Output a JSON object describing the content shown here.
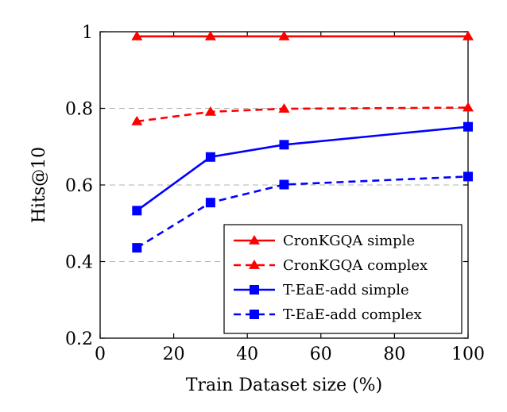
{
  "chart_data": {
    "type": "line",
    "xlabel": "Train Dataset size (%)",
    "ylabel": "Hits@10",
    "xlim": [
      0,
      100
    ],
    "ylim": [
      0.2,
      1.0
    ],
    "xticks": [
      "0",
      "20",
      "40",
      "60",
      "80",
      "100"
    ],
    "yticks": [
      "0.2",
      "0.4",
      "0.6",
      "0.8",
      "1"
    ],
    "grid": "horizontal dashed",
    "legend_position": "bottom-right",
    "x": [
      10,
      30,
      50,
      100
    ],
    "series": [
      {
        "name": "CronKGQA simple",
        "values": [
          0.988,
          0.988,
          0.988,
          0.988
        ],
        "color": "#ff0000",
        "dash": "solid",
        "marker": "triangle"
      },
      {
        "name": "CronKGQA complex",
        "values": [
          0.766,
          0.791,
          0.799,
          0.802
        ],
        "color": "#ff0000",
        "dash": "dashed",
        "marker": "triangle"
      },
      {
        "name": "T-EaE-add simple",
        "values": [
          0.533,
          0.673,
          0.705,
          0.752
        ],
        "color": "#0000ff",
        "dash": "solid",
        "marker": "square"
      },
      {
        "name": "T-EaE-add complex",
        "values": [
          0.436,
          0.554,
          0.601,
          0.622
        ],
        "color": "#0000ff",
        "dash": "dashed",
        "marker": "square"
      }
    ]
  }
}
